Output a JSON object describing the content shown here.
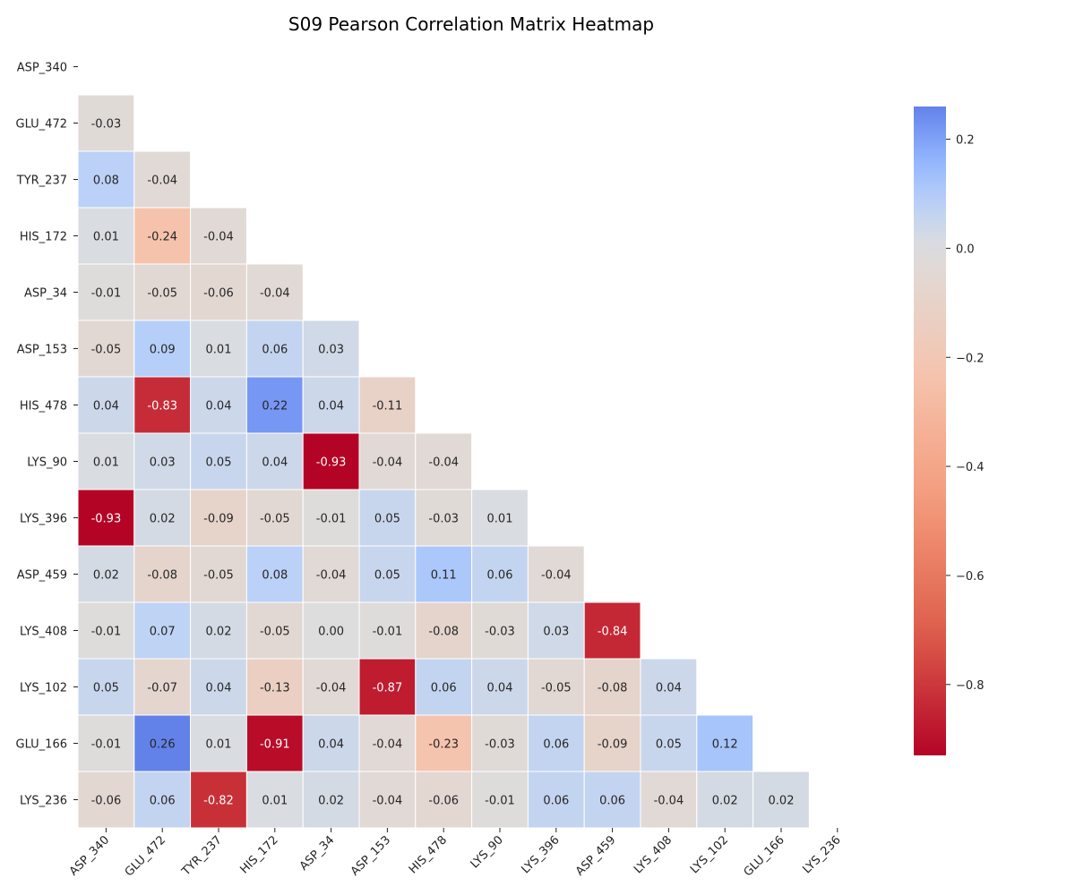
{
  "chart_data": {
    "type": "heatmap",
    "title": "S09 Pearson Correlation Matrix Heatmap",
    "mask": "upper-triangle-including-diagonal",
    "labels": [
      "ASP_340",
      "GLU_472",
      "TYR_237",
      "HIS_172",
      "ASP_34",
      "ASP_153",
      "HIS_478",
      "LYS_90",
      "LYS_396",
      "ASP_459",
      "LYS_408",
      "LYS_102",
      "GLU_166",
      "LYS_236"
    ],
    "lower_triangle": [
      [],
      [
        -0.03
      ],
      [
        0.08,
        -0.04
      ],
      [
        0.01,
        -0.24,
        -0.04
      ],
      [
        -0.01,
        -0.05,
        -0.06,
        -0.04
      ],
      [
        -0.05,
        0.09,
        0.01,
        0.06,
        0.03
      ],
      [
        0.04,
        -0.83,
        0.04,
        0.22,
        0.04,
        -0.11
      ],
      [
        0.01,
        0.03,
        0.05,
        0.04,
        -0.93,
        -0.04,
        -0.04
      ],
      [
        -0.93,
        0.02,
        -0.09,
        -0.05,
        -0.01,
        0.05,
        -0.03,
        0.01
      ],
      [
        0.02,
        -0.08,
        -0.05,
        0.08,
        -0.04,
        0.05,
        0.11,
        0.06,
        -0.04
      ],
      [
        -0.01,
        0.07,
        0.02,
        -0.05,
        0.0,
        -0.01,
        -0.08,
        -0.03,
        0.03,
        -0.84
      ],
      [
        0.05,
        -0.07,
        0.04,
        -0.13,
        -0.04,
        -0.87,
        0.06,
        0.04,
        -0.05,
        -0.08,
        0.04
      ],
      [
        -0.01,
        0.26,
        0.01,
        -0.91,
        0.04,
        -0.04,
        -0.23,
        -0.03,
        0.06,
        -0.09,
        0.05,
        0.12
      ],
      [
        -0.06,
        0.06,
        -0.82,
        0.01,
        0.02,
        -0.04,
        -0.06,
        -0.01,
        0.06,
        0.06,
        -0.04,
        0.02,
        0.02
      ]
    ],
    "value_format": "2 decimals",
    "colormap": "coolwarm",
    "vmin": -0.93,
    "vmax": 0.26,
    "colorbar": {
      "ticks": [
        0.2,
        0.0,
        -0.2,
        -0.4,
        -0.6,
        -0.8
      ],
      "tick_labels": [
        "0.2",
        "0.0",
        "−0.2",
        "−0.4",
        "−0.6",
        "−0.8"
      ]
    },
    "grid": false
  }
}
